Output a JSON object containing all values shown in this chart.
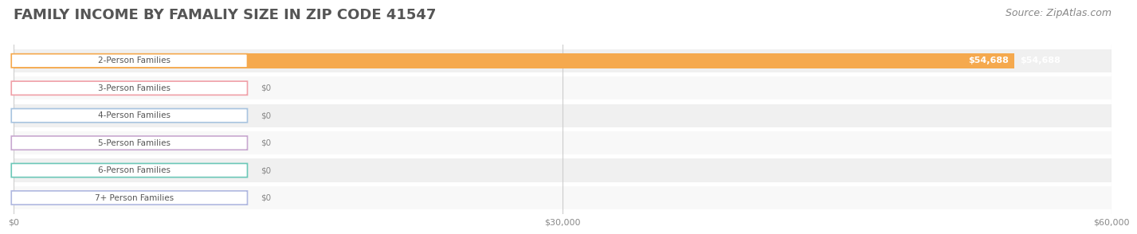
{
  "title": "FAMILY INCOME BY FAMALIY SIZE IN ZIP CODE 41547",
  "source": "Source: ZipAtlas.com",
  "categories": [
    "2-Person Families",
    "3-Person Families",
    "4-Person Families",
    "5-Person Families",
    "6-Person Families",
    "7+ Person Families"
  ],
  "values": [
    54688,
    0,
    0,
    0,
    0,
    0
  ],
  "bar_colors": [
    "#f5a94e",
    "#f0a0a8",
    "#a8c4e0",
    "#c8a8d0",
    "#6cc8b8",
    "#b0b8e0"
  ],
  "label_colors": [
    "#f5a94e",
    "#f0a0a8",
    "#a8c4e0",
    "#c8a8d0",
    "#6cc8b8",
    "#b0b8e0"
  ],
  "row_bg_colors": [
    "#f0f0f0",
    "#f8f8f8",
    "#f0f0f0",
    "#f8f8f8",
    "#f0f0f0",
    "#f8f8f8"
  ],
  "xlim": [
    0,
    60000
  ],
  "xticks": [
    0,
    30000,
    60000
  ],
  "xtick_labels": [
    "$0",
    "$30,000",
    "$60,000"
  ],
  "value_label_0": "$54,688",
  "value_label_zero": "$0",
  "background_color": "#ffffff",
  "title_color": "#555555",
  "title_fontsize": 13,
  "source_color": "#888888",
  "source_fontsize": 9
}
